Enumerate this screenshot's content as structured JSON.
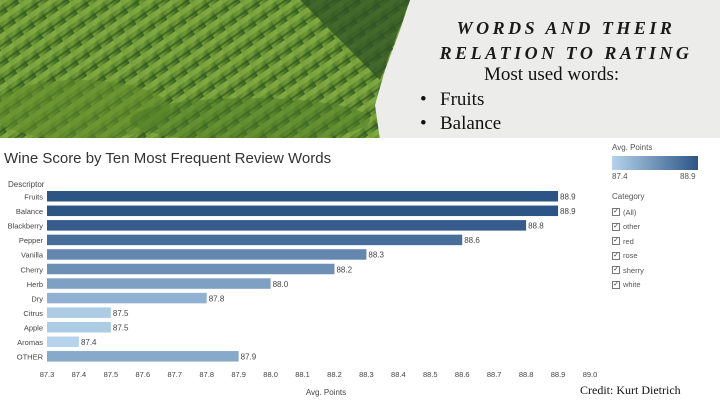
{
  "slide": {
    "title": "Words and their relation to rating",
    "subtitle": "Most used words:",
    "bullets": [
      "Fruits",
      "Balance"
    ],
    "credit": "Credit: Kurt Dietrich"
  },
  "legend": {
    "color_title": "Avg. Points",
    "color_min": "87.4",
    "color_max": "88.9",
    "category_title": "Category",
    "categories": [
      "(All)",
      "other",
      "red",
      "rose",
      "sherry",
      "white"
    ],
    "gradient_colors": [
      "#b5d3ec",
      "#2c5485"
    ]
  },
  "chart_data": {
    "type": "bar",
    "orientation": "horizontal",
    "title": "Wine Score by Ten Most Frequent Review Words",
    "ylabel": "Descriptor",
    "xlabel": "Avg. Points",
    "xlim": [
      87.3,
      89.0
    ],
    "xticks": [
      "87.3",
      "87.4",
      "87.5",
      "87.6",
      "87.7",
      "87.8",
      "87.9",
      "88.0",
      "88.1",
      "88.2",
      "88.3",
      "88.4",
      "88.5",
      "88.6",
      "88.7",
      "88.8",
      "88.9",
      "89.0"
    ],
    "categories": [
      "Fruits",
      "Balance",
      "Blackberry",
      "Pepper",
      "Vanilla",
      "Cherry",
      "Herb",
      "Dry",
      "Citrus",
      "Apple",
      "Aromas",
      "OTHER"
    ],
    "values": [
      88.9,
      88.9,
      88.8,
      88.6,
      88.3,
      88.2,
      88.0,
      87.8,
      87.5,
      87.5,
      87.4,
      87.9
    ],
    "value_labels": [
      "88.9",
      "88.9",
      "88.8",
      "88.6",
      "88.3",
      "88.2",
      "88.0",
      "87.8",
      "87.5",
      "87.5",
      "87.4",
      "87.9"
    ],
    "color_scale": [
      "#b5d3ec",
      "#2c5485"
    ],
    "grid": false
  }
}
